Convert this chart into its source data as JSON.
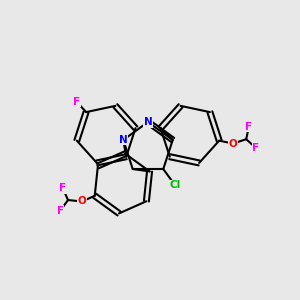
{
  "background_color": "#e8e8e8",
  "bond_color": "#000000",
  "bond_lw": 1.5,
  "atom_colors": {
    "F": "#ff00ff",
    "O": "#ff0000",
    "N": "#0000ff",
    "Cl": "#00bb00",
    "C": "#000000"
  },
  "font_size": 7.5
}
